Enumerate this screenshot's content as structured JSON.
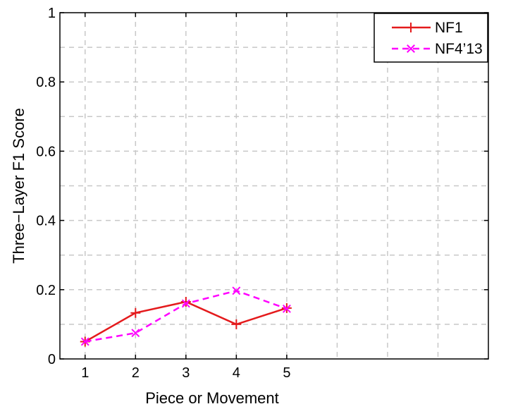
{
  "chart_data": {
    "type": "line",
    "title": "",
    "xlabel": "Piece or Movement",
    "ylabel": "Three−Layer F1 Score",
    "xlim": [
      0.5,
      9
    ],
    "ylim": [
      0,
      1
    ],
    "x_ticks": [
      1,
      2,
      3,
      4,
      5
    ],
    "x_tick_labels": [
      "1",
      "2",
      "3",
      "4",
      "5"
    ],
    "y_ticks": [
      0,
      0.2,
      0.4,
      0.6,
      0.8,
      1
    ],
    "y_tick_labels": [
      "0",
      "0.2",
      "0.4",
      "0.6",
      "0.8",
      "1"
    ],
    "y_minor_grid": [
      0.1,
      0.3,
      0.5,
      0.7,
      0.9
    ],
    "x_grid": [
      1,
      2,
      3,
      4,
      5,
      6,
      7,
      8
    ],
    "grid": true,
    "legend_position": "top-right",
    "series": [
      {
        "name": "NF1",
        "x": [
          1,
          2,
          3,
          4,
          5
        ],
        "values": [
          0.05,
          0.133,
          0.165,
          0.1,
          0.147
        ],
        "color": "#e41a1c",
        "line_style": "solid",
        "marker": "plus"
      },
      {
        "name": "NF4’13",
        "x": [
          1,
          2,
          3,
          4,
          5
        ],
        "values": [
          0.05,
          0.075,
          0.16,
          0.197,
          0.145
        ],
        "color": "#ff00ff",
        "line_style": "dashed",
        "marker": "x"
      }
    ]
  }
}
